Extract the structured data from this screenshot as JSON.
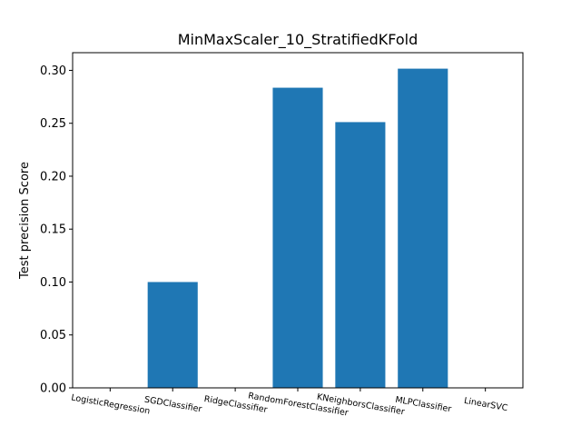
{
  "chart_data": {
    "type": "bar",
    "title": "MinMaxScaler_10_StratifiedKFold",
    "xlabel": "",
    "ylabel": "Test precision Score",
    "categories": [
      "LogisticRegression",
      "SGDClassifier",
      "RidgeClassifier",
      "RandomForestClassifier",
      "KNeighborsClassifier",
      "MLPClassifier",
      "LinearSVC"
    ],
    "values": [
      0.0,
      0.1,
      0.0,
      0.2836,
      0.2511,
      0.3016,
      0.0
    ],
    "ylim": [
      0,
      0.3167
    ],
    "yticks": [
      0.0,
      0.05,
      0.1,
      0.15,
      0.2,
      0.25,
      0.3
    ],
    "ytick_labels": [
      "0.00",
      "0.05",
      "0.10",
      "0.15",
      "0.20",
      "0.25",
      "0.30"
    ],
    "bar_color": "#1f77b4",
    "grid": false
  }
}
